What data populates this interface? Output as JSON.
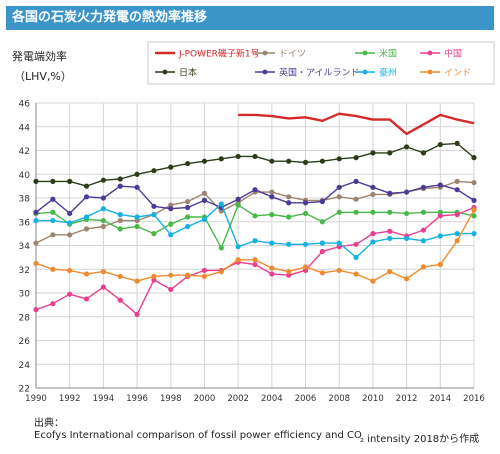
{
  "header": {
    "title": "各国の石炭火力発電の熱効率推移"
  },
  "source": {
    "label": "出典：",
    "text": "Ecofys International comparison of fossil power efficiency and CO",
    "suffix": "₂ intensity 2018から作成"
  },
  "chart_data": {
    "type": "line",
    "ylabel": "発電端効率",
    "ylabel_unit": "（LHV,%）",
    "x": [
      1990,
      1991,
      1992,
      1993,
      1994,
      1995,
      1996,
      1997,
      1998,
      1999,
      2000,
      2001,
      2002,
      2003,
      2004,
      2005,
      2006,
      2007,
      2008,
      2009,
      2010,
      2011,
      2012,
      2013,
      2014,
      2015,
      2016
    ],
    "xticks": [
      1990,
      1992,
      1994,
      1996,
      1998,
      2000,
      2002,
      2004,
      2006,
      2008,
      2010,
      2012,
      2014,
      2016
    ],
    "xlim": [
      1990,
      2016
    ],
    "ylim": [
      22,
      46
    ],
    "yticks": [
      22,
      24,
      26,
      28,
      30,
      32,
      34,
      36,
      38,
      40,
      42,
      44,
      46
    ],
    "grid": true,
    "legend_position": "top",
    "series": [
      {
        "name": "J-POWER磯子新1号",
        "color": "#d42a2a",
        "width": 2.4,
        "marker": false,
        "values": [
          null,
          null,
          null,
          null,
          null,
          null,
          null,
          null,
          null,
          null,
          null,
          null,
          45.0,
          45.0,
          44.9,
          44.7,
          44.8,
          44.5,
          45.1,
          44.9,
          44.6,
          44.6,
          43.4,
          44.2,
          45.0,
          44.6,
          44.3
        ]
      },
      {
        "name": "ドイツ",
        "color": "#9b8570",
        "width": 1.4,
        "marker": true,
        "values": [
          34.2,
          34.9,
          34.9,
          35.4,
          35.6,
          36.1,
          36.1,
          36.6,
          37.4,
          37.7,
          38.4,
          36.9,
          37.6,
          38.5,
          38.5,
          38.1,
          37.8,
          37.8,
          38.1,
          37.9,
          38.3,
          38.3,
          38.5,
          38.8,
          38.9,
          39.4,
          39.3
        ]
      },
      {
        "name": "米国",
        "color": "#48b848",
        "width": 1.4,
        "marker": true,
        "values": [
          36.7,
          36.8,
          35.8,
          36.2,
          36.1,
          35.4,
          35.6,
          35.0,
          35.8,
          36.4,
          36.4,
          33.8,
          37.4,
          36.5,
          36.6,
          36.4,
          36.7,
          36.0,
          36.8,
          36.8,
          36.8,
          36.8,
          36.7,
          36.8,
          36.8,
          36.8,
          36.5
        ]
      },
      {
        "name": "中国",
        "color": "#ea3e8e",
        "width": 1.4,
        "marker": true,
        "values": [
          28.6,
          29.1,
          29.9,
          29.5,
          30.5,
          29.4,
          28.2,
          31.1,
          30.3,
          31.4,
          31.9,
          31.9,
          32.6,
          32.4,
          31.6,
          31.5,
          31.9,
          33.5,
          33.9,
          34.1,
          35.0,
          35.2,
          34.8,
          35.3,
          36.5,
          36.6,
          37.2
        ]
      },
      {
        "name": "日本",
        "color": "#2d3d1a",
        "width": 1.4,
        "marker": true,
        "values": [
          39.4,
          39.4,
          39.4,
          39.0,
          39.5,
          39.6,
          40.0,
          40.3,
          40.6,
          40.9,
          41.1,
          41.3,
          41.5,
          41.5,
          41.1,
          41.1,
          41.0,
          41.1,
          41.3,
          41.4,
          41.8,
          41.8,
          42.3,
          41.8,
          42.5,
          42.6,
          41.4
        ]
      },
      {
        "name": "英国・アイルランド",
        "color": "#4d3a96",
        "width": 1.4,
        "marker": true,
        "values": [
          36.8,
          37.9,
          36.7,
          38.1,
          38.0,
          39.0,
          38.9,
          37.3,
          37.1,
          37.2,
          37.8,
          37.2,
          37.9,
          38.7,
          38.1,
          37.6,
          37.6,
          37.7,
          38.9,
          39.4,
          38.9,
          38.4,
          38.5,
          38.9,
          39.1,
          38.7,
          37.8
        ]
      },
      {
        "name": "豪州",
        "color": "#16b0e3",
        "width": 1.4,
        "marker": true,
        "values": [
          36.1,
          36.1,
          35.9,
          36.4,
          37.1,
          36.6,
          36.4,
          36.6,
          34.9,
          35.6,
          36.2,
          37.5,
          33.9,
          34.4,
          34.2,
          34.1,
          34.1,
          34.2,
          34.2,
          33.0,
          34.3,
          34.6,
          34.6,
          34.4,
          34.8,
          35.0,
          35.0
        ]
      },
      {
        "name": "インド",
        "color": "#ef8b2e",
        "width": 1.4,
        "marker": true,
        "values": [
          32.5,
          32.0,
          31.9,
          31.6,
          31.8,
          31.4,
          31.0,
          31.4,
          31.5,
          31.5,
          31.4,
          31.8,
          32.8,
          32.8,
          32.1,
          31.8,
          32.2,
          31.7,
          31.9,
          31.6,
          31.0,
          31.8,
          31.2,
          32.2,
          32.4,
          34.4,
          37.0
        ]
      }
    ]
  }
}
